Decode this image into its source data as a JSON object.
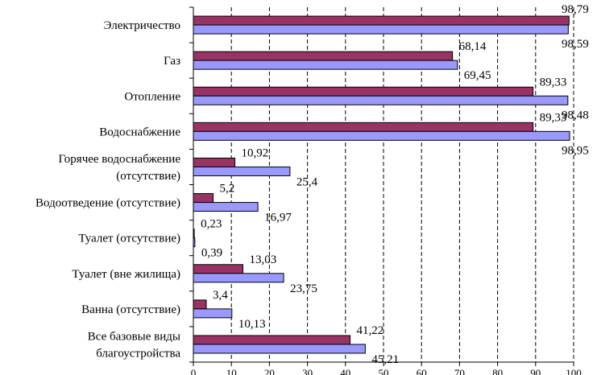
{
  "chart_data": {
    "type": "bar",
    "orientation": "horizontal",
    "categories": [
      [
        "Электричество"
      ],
      [
        "Газ"
      ],
      [
        "Отопление"
      ],
      [
        "Водоснабжение"
      ],
      [
        "Горячее водоснабжение",
        "(отсутствие)"
      ],
      [
        "Водоотведение (отсутствие)"
      ],
      [
        "Туалет (отсутствие)"
      ],
      [
        "Туалет (вне жилища)"
      ],
      [
        "Ванна (отсутствие)"
      ],
      [
        "Все базовые виды",
        "благоустройства"
      ]
    ],
    "series": [
      {
        "name": "series-1",
        "color": "#993366",
        "values": [
          98.79,
          68.14,
          89.33,
          89.33,
          10.92,
          5.2,
          0.23,
          13.03,
          3.4,
          41.22
        ],
        "labels": [
          "98,79",
          "68,14",
          "89,33",
          "89,33",
          "10,92",
          "5,2",
          "0,23",
          "13,03",
          "3,4",
          "41,22"
        ]
      },
      {
        "name": "series-2",
        "color": "#9999ff",
        "values": [
          98.59,
          69.45,
          98.48,
          98.95,
          25.4,
          16.97,
          0.39,
          23.75,
          10.13,
          45.21
        ],
        "labels": [
          "98,59",
          "69,45",
          "98,48",
          "98,95",
          "25,4",
          "16,97",
          "0,39",
          "23,75",
          "10,13",
          "45,21"
        ]
      }
    ],
    "xlim": [
      0,
      100
    ],
    "xticks": [
      0,
      10,
      20,
      30,
      40,
      50,
      60,
      70,
      80,
      90,
      100
    ],
    "grid": "vertical-dashed",
    "title": "",
    "xlabel": "",
    "ylabel": ""
  }
}
